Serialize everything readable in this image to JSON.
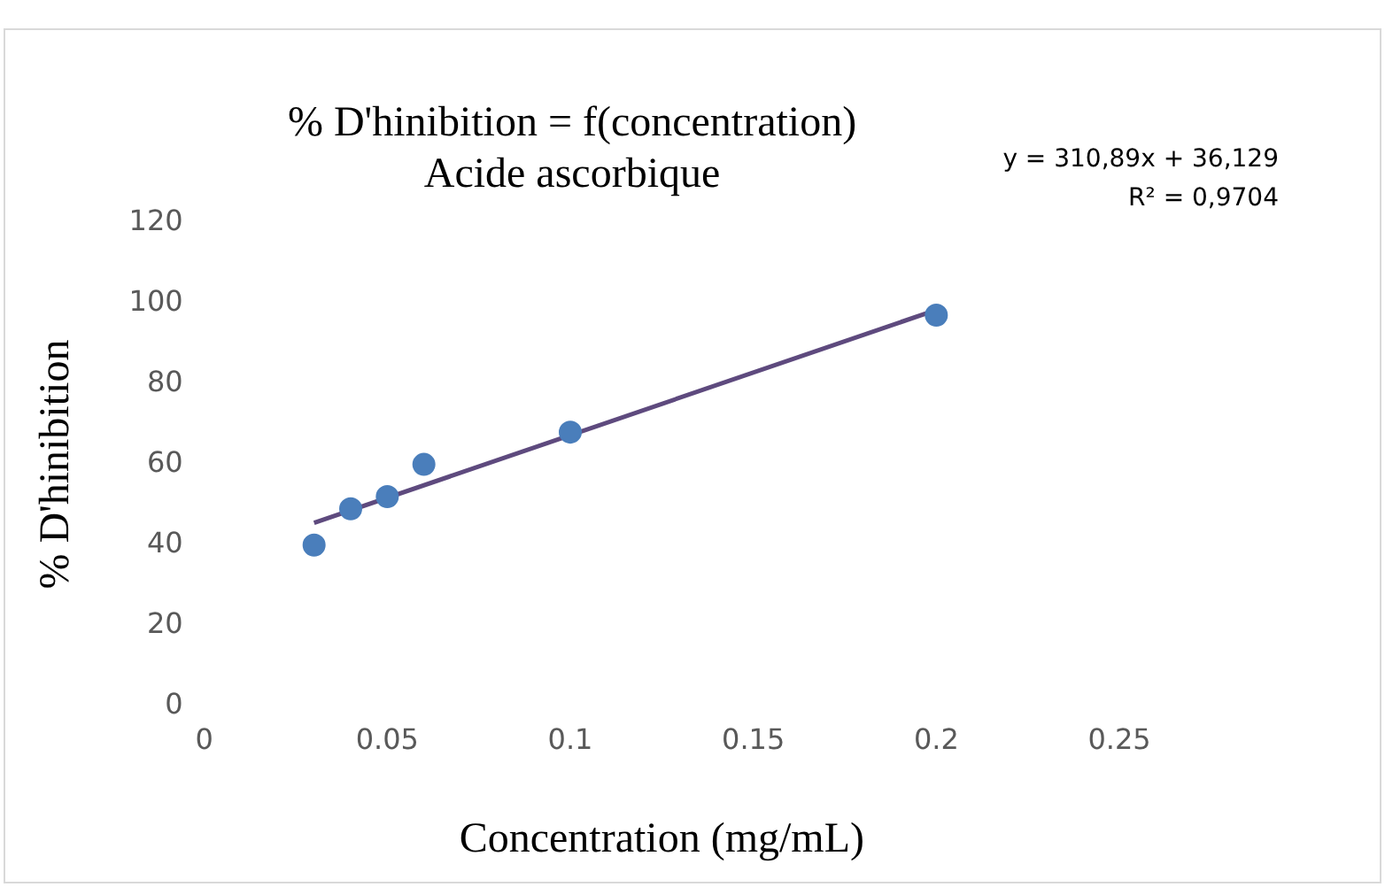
{
  "chart_data": {
    "type": "scatter",
    "title": "% D'hinibition = f(concentration)",
    "subtitle": "Acide ascorbique",
    "xlabel": "Concentration (mg/mL)",
    "ylabel": "% D'hinibition",
    "x": [
      0.03,
      0.04,
      0.05,
      0.06,
      0.1,
      0.2
    ],
    "series": [
      {
        "type": "scatter",
        "color": "#4a7ebb",
        "marker": "circle",
        "values": [
          40,
          49,
          52,
          60,
          68,
          97
        ]
      },
      {
        "type": "line",
        "color": "#5e4a7e",
        "marker": "none",
        "x": [
          0.03,
          0.2
        ],
        "values": [
          45.5,
          98.3
        ]
      }
    ],
    "xlim": [
      0,
      0.25
    ],
    "xticks": [
      0,
      0.05,
      0.1,
      0.15,
      0.2,
      0.25
    ],
    "ylim": [
      0,
      120
    ],
    "yticks": [
      0,
      20,
      40,
      60,
      80,
      100,
      120
    ],
    "grid": false,
    "legend": false,
    "line_style": "solid",
    "annotations": [
      "y = 310,89x + 36,129",
      "R² = 0,9704"
    ]
  }
}
